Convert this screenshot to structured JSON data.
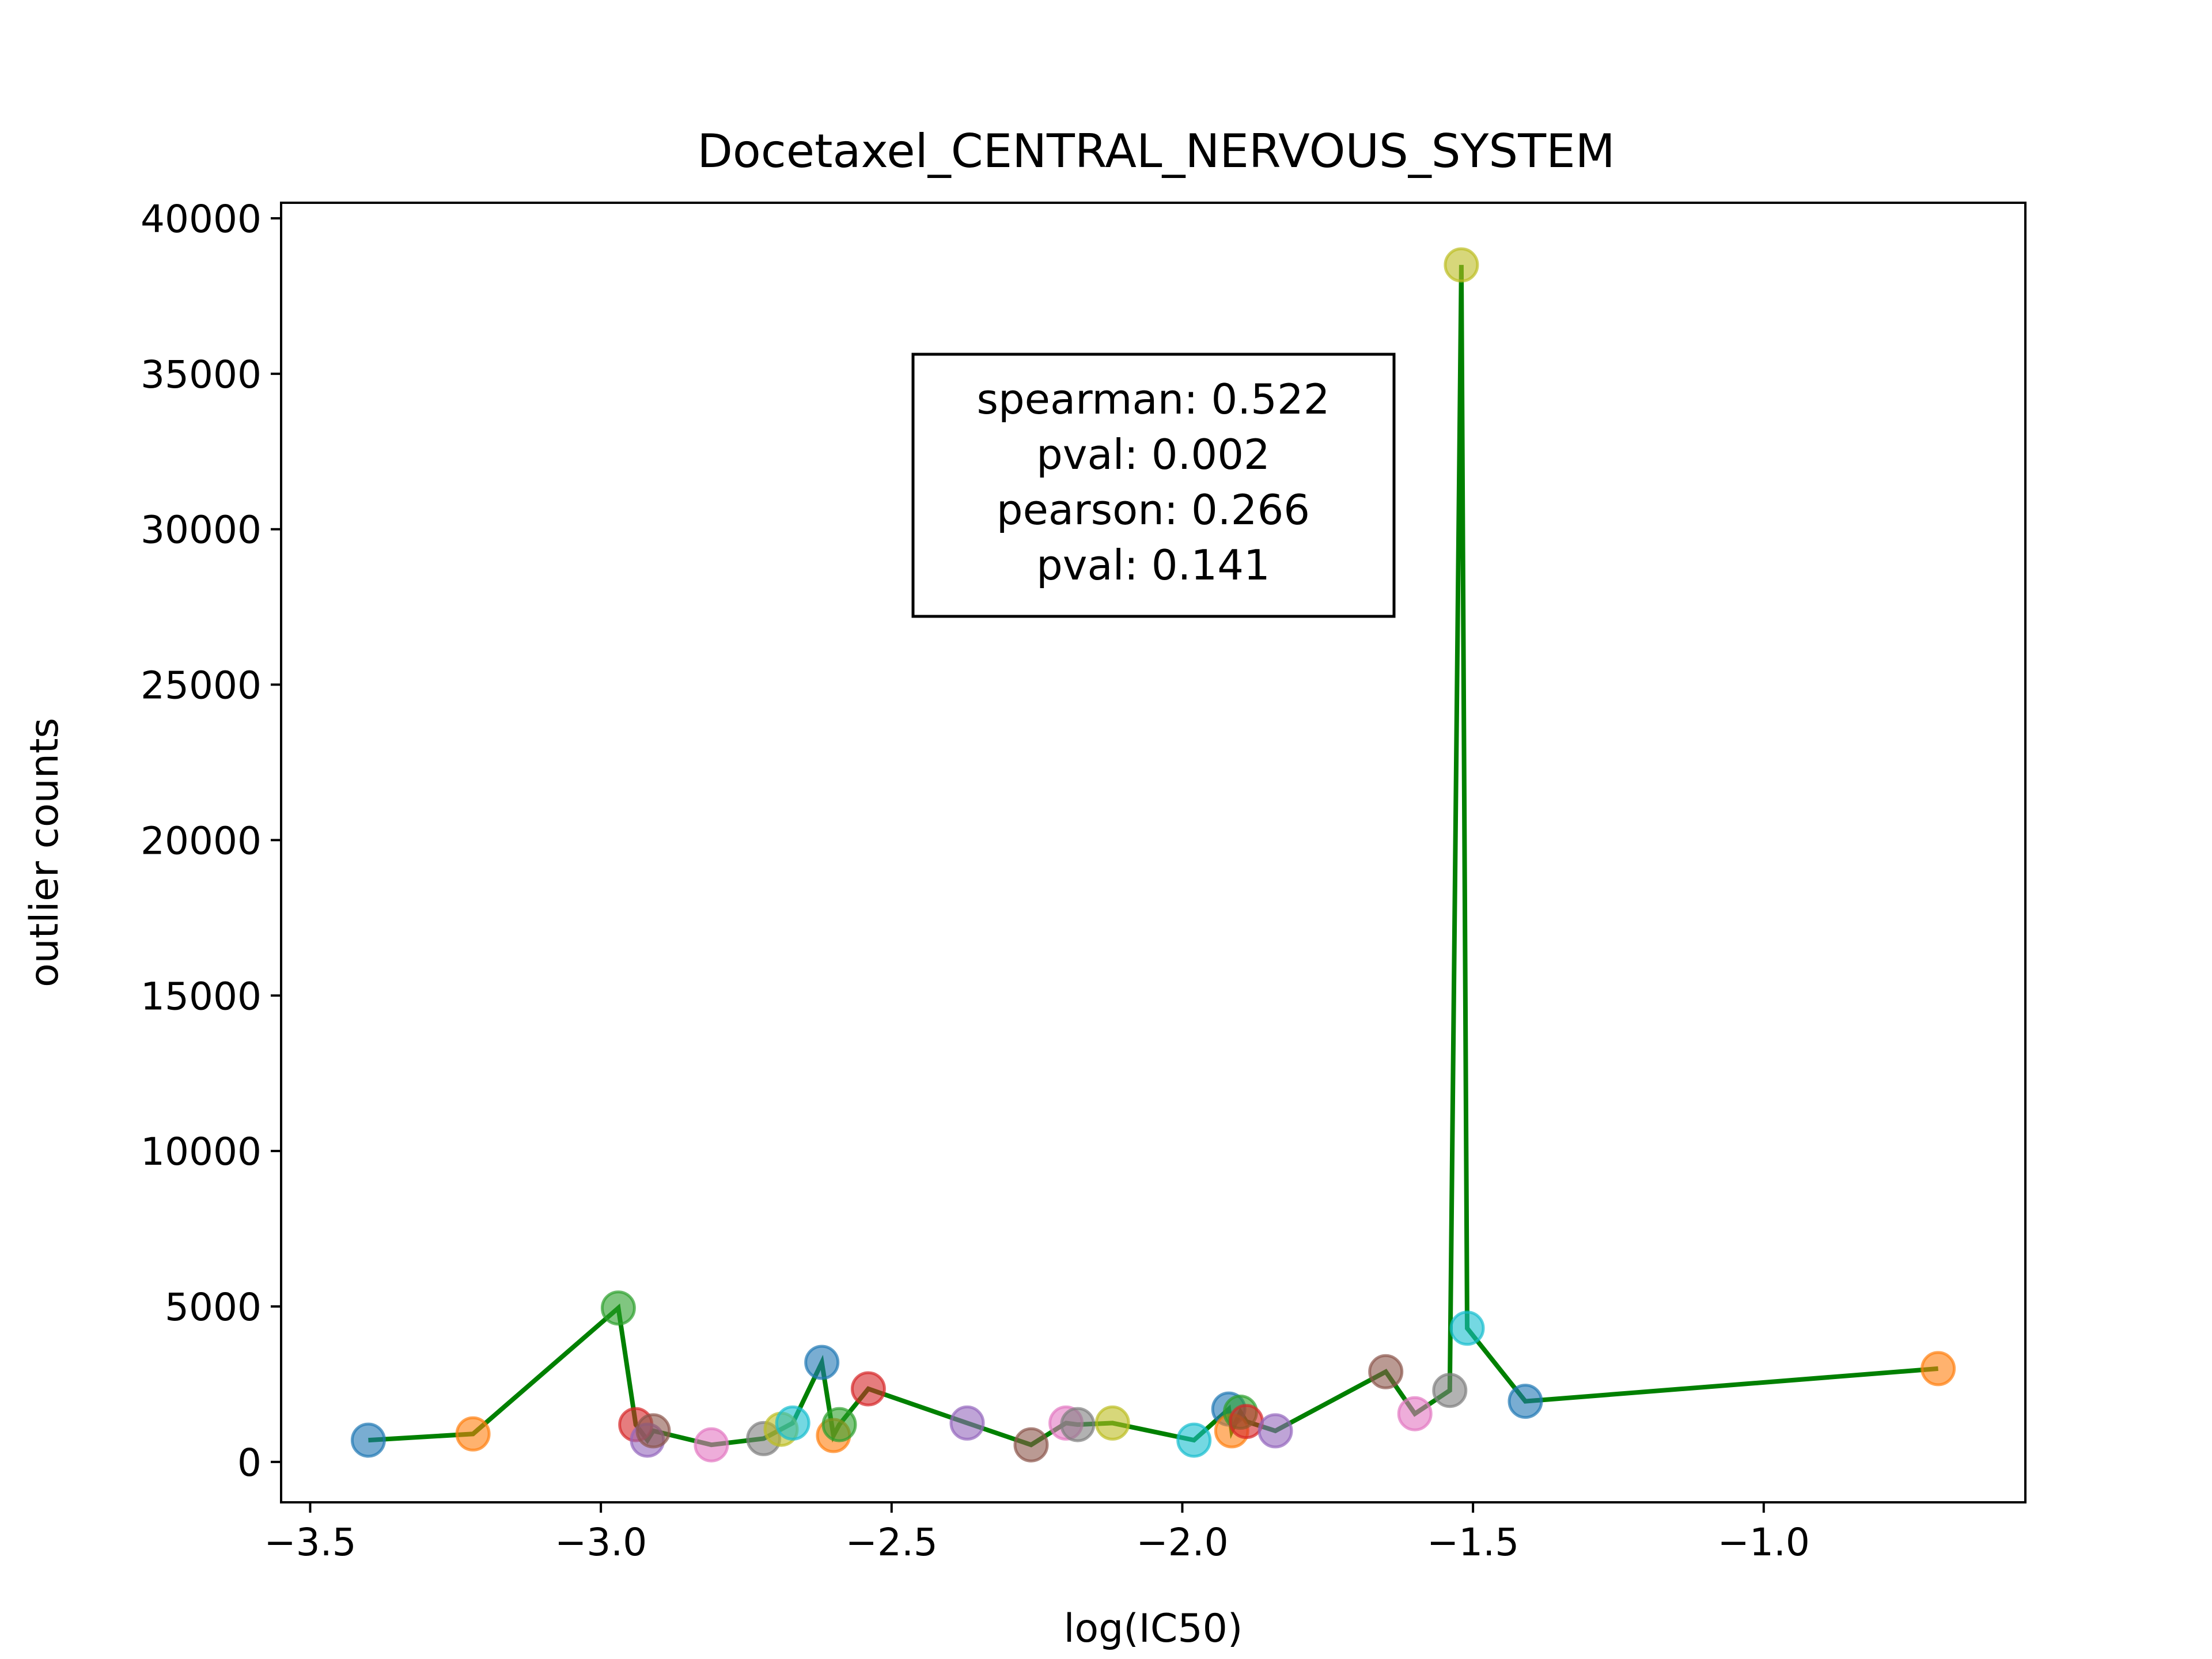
{
  "chart_data": {
    "type": "scatter",
    "title": "Docetaxel_CENTRAL_NERVOUS_SYSTEM",
    "xlabel": "log(IC50)",
    "ylabel": "outlier counts",
    "xlim": [
      -3.55,
      -0.55
    ],
    "ylim": [
      -1300,
      40500
    ],
    "xticks": [
      -3.5,
      -3.0,
      -2.5,
      -2.0,
      -1.5,
      -1.0
    ],
    "xtick_labels": [
      "−3.5",
      "−3.0",
      "−2.5",
      "−2.0",
      "−1.5",
      "−1.0"
    ],
    "yticks": [
      0,
      5000,
      10000,
      15000,
      20000,
      25000,
      30000,
      35000,
      40000
    ],
    "ytick_labels": [
      "0",
      "5000",
      "10000",
      "15000",
      "20000",
      "25000",
      "30000",
      "35000",
      "40000"
    ],
    "grid": false,
    "line_color": "#008000",
    "points": [
      {
        "x": -3.4,
        "y": 700,
        "color": "#1f77b4"
      },
      {
        "x": -3.22,
        "y": 900,
        "color": "#ff7f0e"
      },
      {
        "x": -2.97,
        "y": 4950,
        "color": "#2ca02c"
      },
      {
        "x": -2.94,
        "y": 1200,
        "color": "#d62728"
      },
      {
        "x": -2.92,
        "y": 700,
        "color": "#9467bd"
      },
      {
        "x": -2.91,
        "y": 1000,
        "color": "#8c564b"
      },
      {
        "x": -2.81,
        "y": 550,
        "color": "#e377c2"
      },
      {
        "x": -2.72,
        "y": 750,
        "color": "#7f7f7f"
      },
      {
        "x": -2.69,
        "y": 1050,
        "color": "#bcbd22"
      },
      {
        "x": -2.67,
        "y": 1250,
        "color": "#17becf"
      },
      {
        "x": -2.62,
        "y": 3200,
        "color": "#1f77b4"
      },
      {
        "x": -2.6,
        "y": 850,
        "color": "#ff7f0e"
      },
      {
        "x": -2.59,
        "y": 1200,
        "color": "#2ca02c"
      },
      {
        "x": -2.54,
        "y": 2350,
        "color": "#d62728"
      },
      {
        "x": -2.37,
        "y": 1250,
        "color": "#9467bd"
      },
      {
        "x": -2.26,
        "y": 550,
        "color": "#8c564b"
      },
      {
        "x": -2.2,
        "y": 1250,
        "color": "#e377c2"
      },
      {
        "x": -2.18,
        "y": 1200,
        "color": "#7f7f7f"
      },
      {
        "x": -2.12,
        "y": 1250,
        "color": "#bcbd22"
      },
      {
        "x": -1.98,
        "y": 700,
        "color": "#17becf"
      },
      {
        "x": -1.92,
        "y": 1700,
        "color": "#1f77b4"
      },
      {
        "x": -1.915,
        "y": 1000,
        "color": "#ff7f0e"
      },
      {
        "x": -1.9,
        "y": 1600,
        "color": "#2ca02c"
      },
      {
        "x": -1.89,
        "y": 1300,
        "color": "#d62728"
      },
      {
        "x": -1.84,
        "y": 1000,
        "color": "#9467bd"
      },
      {
        "x": -1.65,
        "y": 2900,
        "color": "#8c564b"
      },
      {
        "x": -1.6,
        "y": 1550,
        "color": "#e377c2"
      },
      {
        "x": -1.54,
        "y": 2300,
        "color": "#7f7f7f"
      },
      {
        "x": -1.52,
        "y": 38500,
        "color": "#bcbd22"
      },
      {
        "x": -1.51,
        "y": 4300,
        "color": "#17becf"
      },
      {
        "x": -1.41,
        "y": 1950,
        "color": "#1f77b4"
      },
      {
        "x": -0.7,
        "y": 3000,
        "color": "#ff7f0e"
      }
    ],
    "stats_box": {
      "lines": [
        "spearman: 0.522",
        "pval: 0.002",
        "pearson: 0.266",
        "pval: 0.141"
      ]
    }
  }
}
